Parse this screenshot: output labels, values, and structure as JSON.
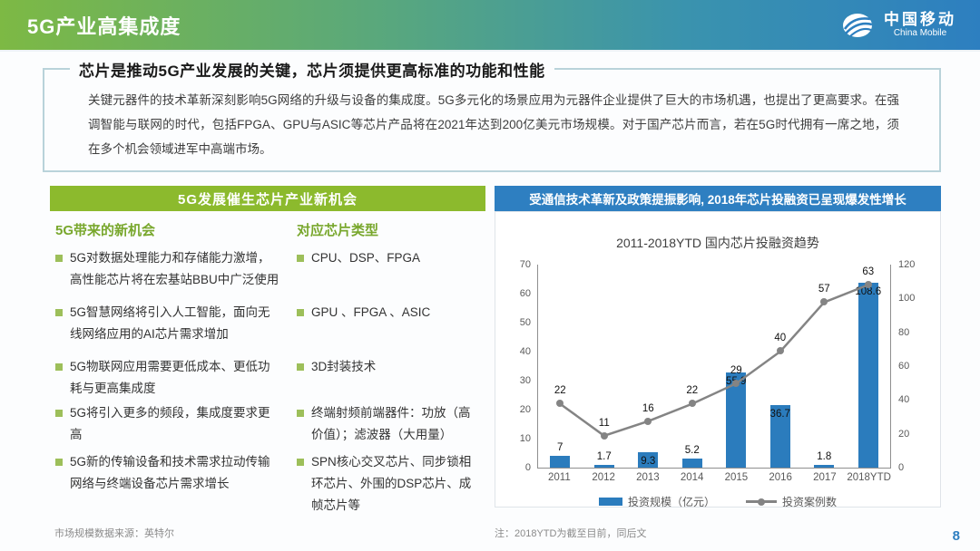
{
  "header": {
    "title": "5G产业高集成度",
    "logo": {
      "cn": "中国移动",
      "en": "China Mobile"
    }
  },
  "intro": {
    "headline": "芯片是推动5G产业发展的关键，芯片须提供更高标准的功能和性能",
    "body": "关键元器件的技术革新深刻影响5G网络的升级与设备的集成度。5G多元化的场景应用为元器件企业提供了巨大的市场机遇，也提出了更高要求。在强调智能与联网的时代，包括FPGA、GPU与ASIC等芯片产品将在2021年达到200亿美元市场规模。对于国产芯片而言，若在5G时代拥有一席之地，须在多个机会领域进军中高端市场。"
  },
  "left_panel": {
    "title": "5G发展催生芯片产业新机会",
    "columns": [
      {
        "header": "5G带来的新机会",
        "items": [
          "5G对数据处理能力和存储能力激增，高性能芯片将在宏基站BBU中广泛使用",
          "5G智慧网络将引入人工智能，面向无线网络应用的AI芯片需求增加",
          "5G物联网应用需要更低成本、更低功耗与更高集成度",
          "5G将引入更多的频段，集成度要求更高",
          "5G新的传输设备和技术需求拉动传输网络与终端设备芯片需求增长"
        ]
      },
      {
        "header": "对应芯片类型",
        "items": [
          "CPU、DSP、FPGA",
          "GPU 、FPGA 、ASIC",
          "3D封装技术",
          "终端射频前端器件：功放（高价值）；滤波器（大用量）",
          "SPN核心交叉芯片、同步锁相环芯片、外围的DSP芯片、成帧芯片等"
        ]
      }
    ],
    "footnote": "市场规模数据来源：英特尔"
  },
  "right_panel": {
    "title": "受通信技术革新及政策提振影响, 2018年芯片投融资已呈现爆发性增长",
    "footnote": "注：2018YTD为截至目前，同后文"
  },
  "chart_data": {
    "type": "bar",
    "subtype": "combo-bar-line",
    "title": "2011-2018YTD 国内芯片投融资趋势",
    "categories": [
      "2011",
      "2012",
      "2013",
      "2014",
      "2015",
      "2016",
      "2017",
      "2018YTD"
    ],
    "series": [
      {
        "name": "投资规模（亿元）",
        "type": "bar",
        "axis": "right",
        "color": "#2b7cbd",
        "values": [
          7,
          1.7,
          9.3,
          5.2,
          55.9,
          36.7,
          1.8,
          108.6
        ]
      },
      {
        "name": "投资案例数",
        "type": "line",
        "axis": "left",
        "color": "#848484",
        "values": [
          22,
          11,
          16,
          22,
          29,
          40,
          57,
          63
        ]
      }
    ],
    "left_axis": {
      "min": 0,
      "max": 70,
      "ticks": [
        0,
        10,
        20,
        30,
        40,
        50,
        60,
        70
      ]
    },
    "right_axis": {
      "min": 0,
      "max": 120,
      "ticks": [
        0,
        20,
        40,
        60,
        80,
        100,
        120
      ]
    },
    "grid": false,
    "legend_position": "bottom"
  },
  "page_number": "8",
  "colors": {
    "accent_green": "#8cba2d",
    "accent_blue": "#2e7fc1",
    "bar_blue": "#2b7cbd",
    "line_gray": "#848484"
  }
}
